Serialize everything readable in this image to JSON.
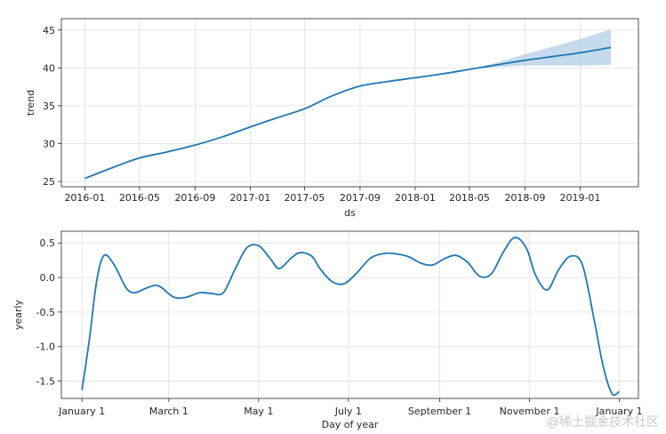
{
  "watermark": "@稀土掘金技术社区",
  "chart_data": [
    {
      "type": "line",
      "xlabel": "ds",
      "ylabel": "trend",
      "ylim": [
        24.3,
        46.5
      ],
      "grid": true,
      "x_tick_labels": [
        "2016-01",
        "2016-05",
        "2016-09",
        "2017-01",
        "2017-05",
        "2017-09",
        "2018-01",
        "2018-05",
        "2018-09",
        "2019-01"
      ],
      "x_tick_dates": [
        "2016-01-01",
        "2016-05-01",
        "2016-09-01",
        "2017-01-01",
        "2017-05-01",
        "2017-09-01",
        "2018-01-01",
        "2018-05-01",
        "2018-09-01",
        "2019-01-01"
      ],
      "y_ticks": [
        25,
        30,
        35,
        40,
        45
      ],
      "xlim": [
        "2015-11-10",
        "2019-05-10"
      ],
      "line_color": "#1f77b4",
      "band_color": "#a6c8e3",
      "series": [
        {
          "x": [
            "2016-01-01",
            "2016-03-01",
            "2016-05-01",
            "2016-07-01",
            "2016-09-01",
            "2016-11-01",
            "2017-01-01",
            "2017-03-01",
            "2017-05-01",
            "2017-07-01",
            "2017-09-01",
            "2017-11-01",
            "2018-01-01",
            "2018-03-01",
            "2018-05-01",
            "2018-07-01",
            "2018-09-01",
            "2018-11-01",
            "2019-01-01",
            "2019-03-10"
          ],
          "y": [
            25.4,
            26.8,
            28.1,
            28.9,
            29.8,
            30.9,
            32.2,
            33.4,
            34.6,
            36.3,
            37.6,
            38.2,
            38.7,
            39.2,
            39.8,
            40.4,
            41.0,
            41.5,
            42.0,
            42.7
          ]
        }
      ],
      "uncertainty_band": {
        "x": [
          "2018-05-01",
          "2018-07-01",
          "2018-09-01",
          "2018-11-01",
          "2019-01-01",
          "2019-03-10"
        ],
        "lower": [
          39.8,
          40.1,
          40.3,
          40.3,
          40.3,
          40.4
        ],
        "upper": [
          39.8,
          40.7,
          41.8,
          42.8,
          43.8,
          45.1
        ]
      }
    },
    {
      "type": "line",
      "xlabel": "Day of year",
      "ylabel": "yearly",
      "xlim": [
        -14,
        378
      ],
      "ylim": [
        -1.75,
        0.67
      ],
      "grid": true,
      "x_tick_labels": [
        "January 1",
        "March 1",
        "May 1",
        "July 1",
        "September 1",
        "November 1",
        "January 1"
      ],
      "x_tick_days": [
        0,
        59,
        120,
        181,
        243,
        304,
        365
      ],
      "y_ticks": [
        -1.5,
        -1.0,
        -0.5,
        0.0,
        0.5
      ],
      "y_tick_labels": [
        "-1.5",
        "-1.0",
        "-0.5",
        "0.0",
        "0.5"
      ],
      "line_color": "#1f77b4",
      "series": [
        {
          "x": [
            0,
            5,
            10,
            15,
            22,
            30,
            36,
            44,
            52,
            62,
            70,
            80,
            88,
            96,
            104,
            112,
            120,
            128,
            134,
            142,
            148,
            156,
            162,
            170,
            178,
            186,
            196,
            206,
            214,
            222,
            230,
            238,
            246,
            254,
            262,
            270,
            278,
            286,
            294,
            302,
            308,
            316,
            324,
            332,
            340,
            348,
            354,
            360,
            365
          ],
          "y": [
            -1.63,
            -0.9,
            -0.05,
            0.32,
            0.18,
            -0.15,
            -0.22,
            -0.15,
            -0.12,
            -0.28,
            -0.29,
            -0.22,
            -0.23,
            -0.22,
            0.12,
            0.43,
            0.46,
            0.27,
            0.13,
            0.28,
            0.36,
            0.31,
            0.12,
            -0.06,
            -0.09,
            0.05,
            0.28,
            0.35,
            0.34,
            0.3,
            0.21,
            0.18,
            0.27,
            0.32,
            0.22,
            0.02,
            0.05,
            0.36,
            0.58,
            0.42,
            0.04,
            -0.18,
            0.12,
            0.31,
            0.18,
            -0.62,
            -1.28,
            -1.68,
            -1.65
          ]
        }
      ]
    }
  ]
}
